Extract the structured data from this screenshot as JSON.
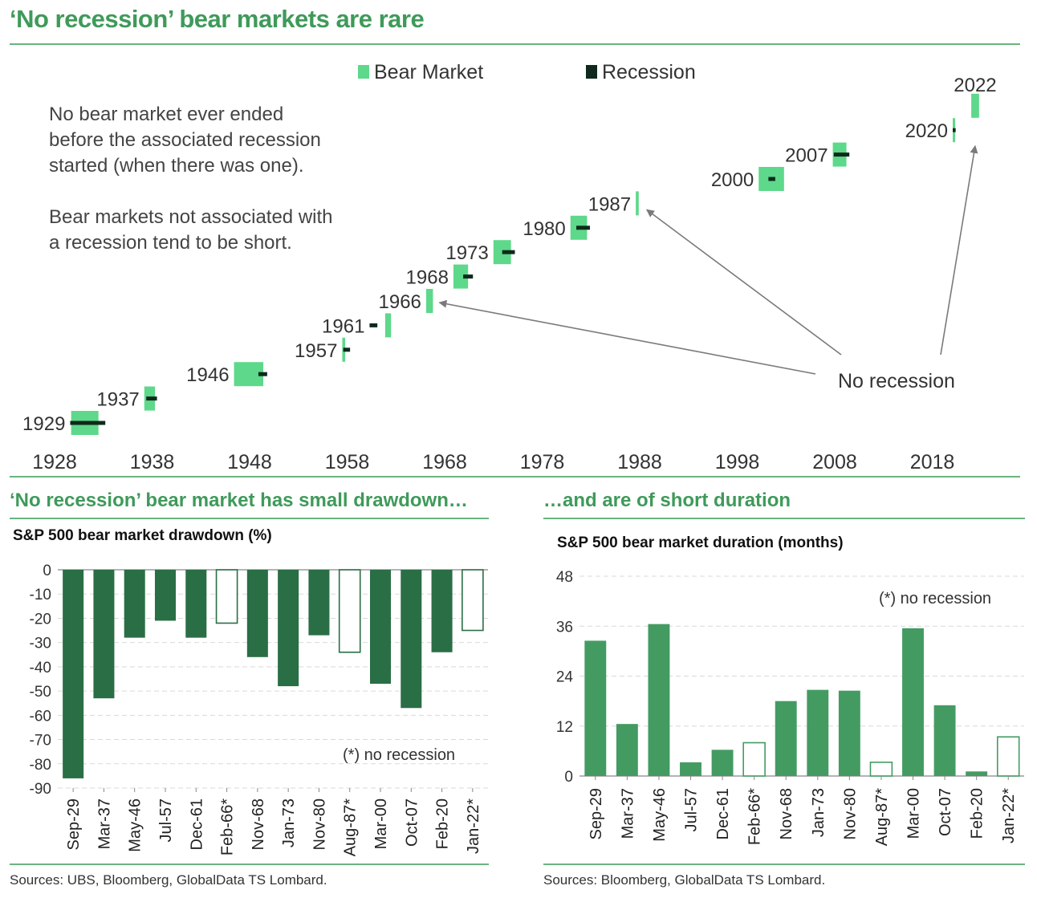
{
  "main_title": "‘No recession’ bear markets are rare",
  "left_subtitle": "‘No recession’ bear market has small drawdown…",
  "right_subtitle": "…and are of short duration",
  "left_chart_title": "S&P 500 bear market drawdown (%)",
  "right_chart_title": "S&P 500 bear market duration (months)",
  "left_source": "Sources: UBS, Bloomberg, GlobalData TS Lombard.",
  "right_source": "Sources: Bloomberg, GlobalData TS Lombard.",
  "colors": {
    "title_green": "#3f9a5a",
    "bear_market": "#5ed88a",
    "recession": "#0f2a1c",
    "drawdown_bar": "#2a6e45",
    "duration_bar": "#449b62",
    "rule": "#69b47f"
  },
  "chart_data": [
    {
      "type": "timeline",
      "legend": [
        "Bear Market",
        "Recession"
      ],
      "annotations": {
        "note_lines": [
          "No bear market ever ended",
          "before the associated recession",
          "started (when there was one).",
          "",
          "Bear markets not associated with",
          "a recession tend to be short."
        ],
        "no_recession_label": "No recession",
        "arrows_to": [
          "1966",
          "1987",
          "2022"
        ]
      },
      "x_ticks": [
        "1928",
        "1938",
        "1948",
        "1958",
        "1968",
        "1978",
        "1988",
        "1998",
        "2008",
        "2018"
      ],
      "xlim": [
        1928,
        2028
      ],
      "episodes": [
        {
          "label": "1929",
          "bear": [
            1929.7,
            1932.5
          ],
          "recession": [
            1929.6,
            1933.2
          ]
        },
        {
          "label": "1937",
          "bear": [
            1937.2,
            1938.3
          ],
          "recession": [
            1937.4,
            1938.5
          ]
        },
        {
          "label": "1946",
          "bear": [
            1946.4,
            1949.4
          ],
          "recession": [
            1948.9,
            1949.8
          ]
        },
        {
          "label": "1957",
          "bear": [
            1957.5,
            1957.8
          ],
          "recession": [
            1957.6,
            1958.3
          ]
        },
        {
          "label": "1961",
          "bear": [
            1961.9,
            1962.5
          ],
          "recession": [
            1960.3,
            1961.1
          ]
        },
        {
          "label": "1966",
          "bear": [
            1966.1,
            1966.8
          ],
          "recession": null
        },
        {
          "label": "1968",
          "bear": [
            1968.9,
            1970.4
          ],
          "recession": [
            1969.9,
            1970.9
          ]
        },
        {
          "label": "1973",
          "bear": [
            1973.0,
            1974.8
          ],
          "recession": [
            1973.9,
            1975.2
          ]
        },
        {
          "label": "1980",
          "bear": [
            1980.9,
            1982.6
          ],
          "recession": [
            1981.5,
            1982.9
          ]
        },
        {
          "label": "1987",
          "bear": [
            1987.6,
            1987.9
          ],
          "recession": null
        },
        {
          "label": "2000",
          "bear": [
            2000.2,
            2002.8
          ],
          "recession": [
            2001.2,
            2001.9
          ]
        },
        {
          "label": "2007",
          "bear": [
            2007.8,
            2009.2
          ],
          "recession": [
            2007.9,
            2009.5
          ]
        },
        {
          "label": "2020",
          "bear": [
            2020.1,
            2020.3
          ],
          "recession": [
            2020.1,
            2020.4
          ]
        },
        {
          "label": "2022",
          "bear": [
            2022.0,
            2022.8
          ],
          "recession": null
        }
      ]
    },
    {
      "type": "bar",
      "title": "S&P 500 bear market drawdown (%)",
      "categories": [
        "Sep-29",
        "Mar-37",
        "May-46",
        "Jul-57",
        "Dec-61",
        "Feb-66*",
        "Nov-68",
        "Jan-73",
        "Nov-80",
        "Aug-87*",
        "Mar-00",
        "Oct-07",
        "Feb-20",
        "Jan-22*"
      ],
      "values": [
        -86,
        -53,
        -28,
        -21,
        -28,
        -22,
        -36,
        -48,
        -27,
        -34,
        -47,
        -57,
        -34,
        -25
      ],
      "no_recession": [
        false,
        false,
        false,
        false,
        false,
        true,
        false,
        false,
        false,
        true,
        false,
        false,
        false,
        true
      ],
      "y_ticks": [
        "0",
        "-10",
        "-20",
        "-30",
        "-40",
        "-50",
        "-60",
        "-70",
        "-80",
        "-90"
      ],
      "ylim": [
        -90,
        0
      ],
      "note": "(*) no recession"
    },
    {
      "type": "bar",
      "title": "S&P 500 bear market duration (months)",
      "categories": [
        "Sep-29",
        "Mar-37",
        "May-46",
        "Jul-57",
        "Dec-61",
        "Feb-66*",
        "Nov-68",
        "Jan-73",
        "Nov-80",
        "Aug-87*",
        "Mar-00",
        "Oct-07",
        "Feb-20",
        "Jan-22*"
      ],
      "values": [
        32.5,
        12.5,
        36.5,
        3.3,
        6.3,
        8,
        18,
        20.7,
        20.5,
        3.3,
        35.5,
        17,
        1.1,
        9.4
      ],
      "no_recession": [
        false,
        false,
        false,
        false,
        false,
        true,
        false,
        false,
        false,
        true,
        false,
        false,
        false,
        true
      ],
      "y_ticks": [
        "48",
        "36",
        "24",
        "12",
        "0"
      ],
      "ylim": [
        0,
        48
      ],
      "note": "(*) no recession"
    }
  ]
}
